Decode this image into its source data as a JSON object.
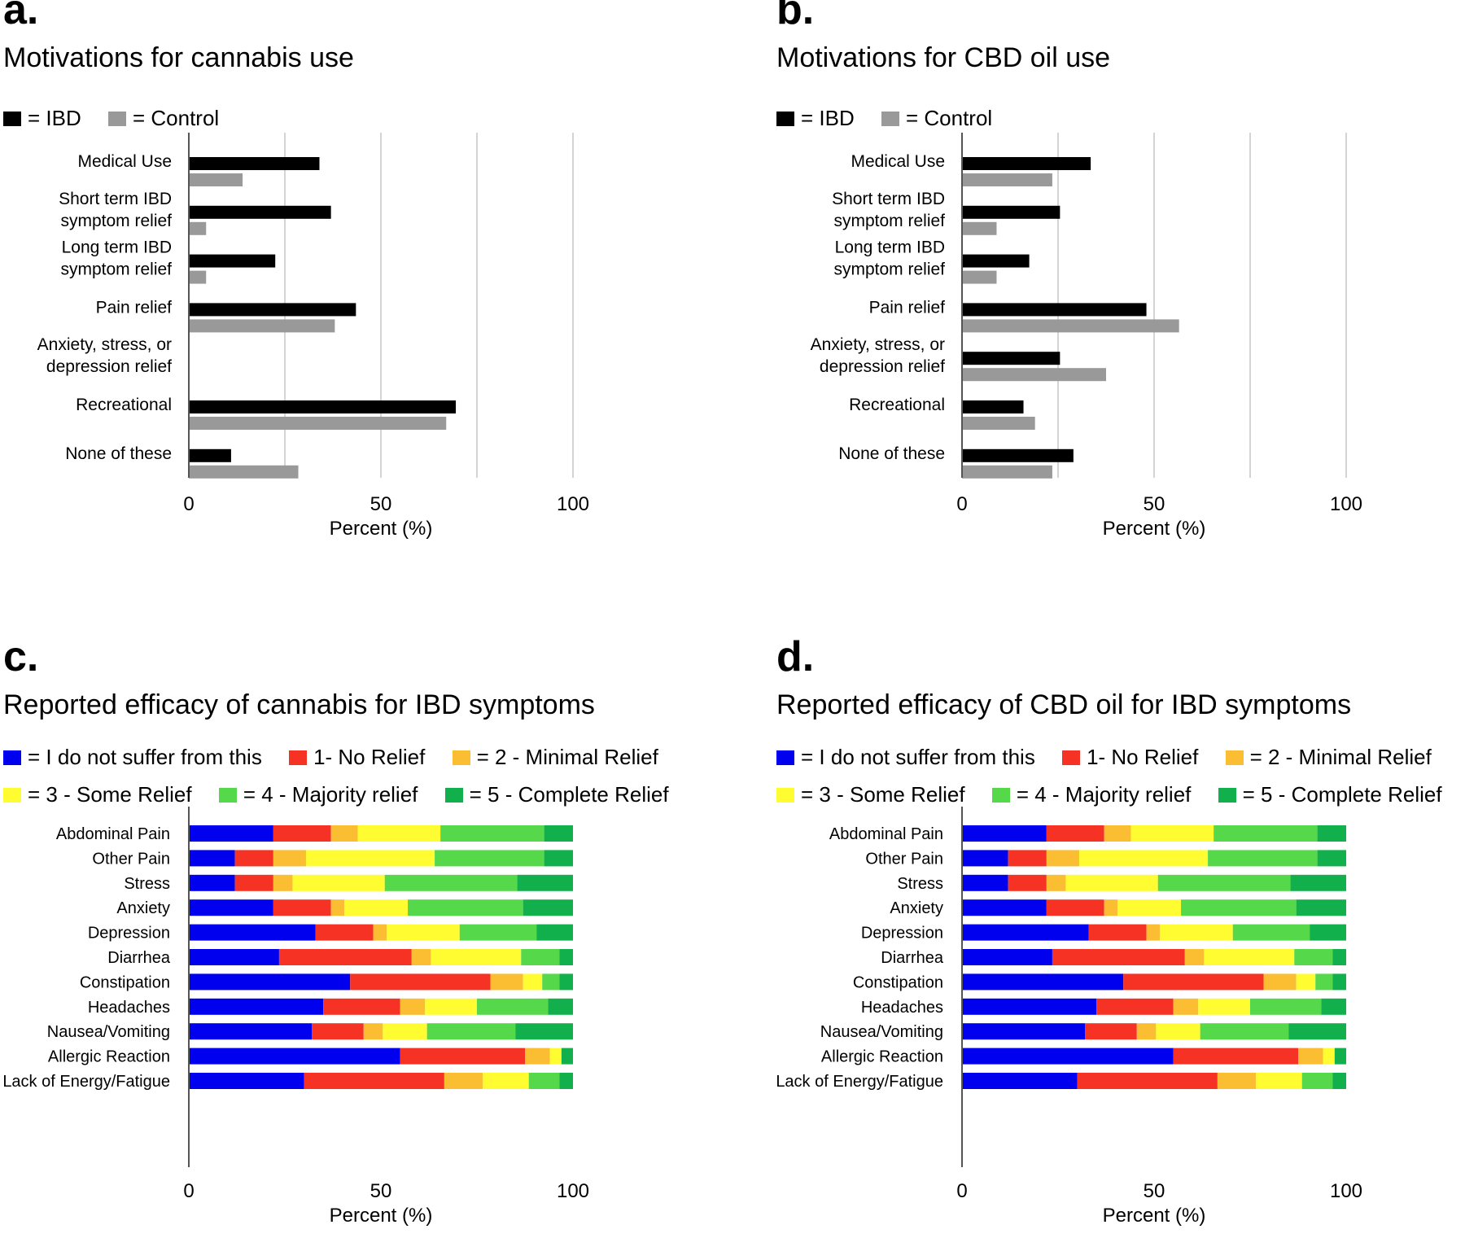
{
  "panels": {
    "a": {
      "label": "a.",
      "title": "Motivations for cannabis use"
    },
    "b": {
      "label": "b.",
      "title": "Motivations for CBD oil use"
    },
    "c": {
      "label": "c.",
      "title": "Reported efficacy of cannabis for IBD symptoms"
    },
    "d": {
      "label": "d.",
      "title": "Reported efficacy of CBD oil for IBD symptoms"
    }
  },
  "legends": {
    "motivation": [
      {
        "label": "= IBD",
        "color": "#000000"
      },
      {
        "label": "= Control",
        "color": "#999999"
      }
    ],
    "efficacy_row1": [
      {
        "label": "= I do not suffer from this",
        "color": "#0000ee"
      },
      {
        "label": "1- No Relief",
        "color": "#f53223"
      },
      {
        "label": "= 2 - Minimal Relief",
        "color": "#fbbd32"
      }
    ],
    "efficacy_row2": [
      {
        "label": "= 3 - Some Relief",
        "color": "#fffd32"
      },
      {
        "label": "= 4 - Majority relief",
        "color": "#56d84b"
      },
      {
        "label": "= 5 - Complete Relief",
        "color": "#11b04c"
      }
    ]
  },
  "chart_data": [
    {
      "id": "a",
      "type": "bar",
      "orientation": "horizontal",
      "title": "Motivations for cannabis use",
      "xlabel": "Percent (%)",
      "xlim": [
        0,
        100
      ],
      "xticks": [
        0,
        50,
        100
      ],
      "grid": true,
      "categories": [
        "Medical Use",
        "Short term IBD\nsymptom relief",
        "Long term IBD\nsymptom relief",
        "Pain relief",
        "Anxiety, stress, or\ndepression relief",
        "Recreational",
        "None of these"
      ],
      "series": [
        {
          "name": "IBD",
          "color": "#000000",
          "values": [
            34,
            37,
            22.5,
            43.5,
            0,
            69.5,
            11
          ]
        },
        {
          "name": "Control",
          "color": "#999999",
          "values": [
            14,
            4.5,
            4.5,
            38,
            0,
            67,
            28.5
          ]
        }
      ]
    },
    {
      "id": "b",
      "type": "bar",
      "orientation": "horizontal",
      "title": "Motivations for CBD oil use",
      "xlabel": "Percent (%)",
      "xlim": [
        0,
        100
      ],
      "xticks": [
        0,
        50,
        100
      ],
      "grid": true,
      "categories": [
        "Medical Use",
        "Short term IBD\nsymptom relief",
        "Long term IBD\nsymptom relief",
        "Pain relief",
        "Anxiety, stress, or\ndepression relief",
        "Recreational",
        "None of these"
      ],
      "series": [
        {
          "name": "IBD",
          "color": "#000000",
          "values": [
            33.5,
            25.5,
            17.5,
            48,
            25.5,
            16,
            29
          ]
        },
        {
          "name": "Control",
          "color": "#999999",
          "values": [
            23.5,
            9,
            9,
            56.5,
            37.5,
            19,
            23.5
          ]
        }
      ]
    },
    {
      "id": "c",
      "type": "bar",
      "orientation": "horizontal",
      "stacked": true,
      "title": "Reported efficacy of cannabis for IBD symptoms",
      "xlabel": "Percent (%)",
      "xlim": [
        0,
        100
      ],
      "xticks": [
        0,
        50,
        100
      ],
      "grid": false,
      "categories": [
        "Abdominal Pain",
        "Other Pain",
        "Stress",
        "Anxiety",
        "Depression",
        "Diarrhea",
        "Constipation",
        "Headaches",
        "Nausea/Vomiting",
        "Allergic Reaction",
        "Lack of Energy/Fatigue"
      ],
      "series": [
        {
          "name": "I do not suffer from this",
          "color": "#0000ee",
          "values": [
            22,
            12,
            12,
            22,
            33,
            23.5,
            42,
            35,
            32,
            55,
            30
          ]
        },
        {
          "name": "1- No Relief",
          "color": "#f53223",
          "values": [
            15,
            10,
            10,
            15,
            15,
            34.5,
            36.5,
            20,
            13.5,
            32.5,
            36.5
          ]
        },
        {
          "name": "2 - Minimal Relief",
          "color": "#fbbd32",
          "values": [
            7,
            8.5,
            5,
            3.5,
            3.5,
            5,
            8.5,
            6.5,
            5,
            6.5,
            10
          ]
        },
        {
          "name": "3 - Some Relief",
          "color": "#fffd32",
          "values": [
            21.5,
            33.5,
            24,
            16.5,
            19,
            23.5,
            5,
            13.5,
            11.5,
            3,
            12
          ]
        },
        {
          "name": "4 - Majority relief",
          "color": "#56d84b",
          "values": [
            27,
            28.5,
            34.5,
            30,
            20,
            10,
            4.5,
            18.5,
            23,
            0,
            8
          ]
        },
        {
          "name": "5 - Complete Relief",
          "color": "#11b04c",
          "values": [
            7.5,
            7.5,
            14.5,
            13,
            9.5,
            3.5,
            3.5,
            6.5,
            15,
            3,
            3.5
          ]
        }
      ]
    },
    {
      "id": "d",
      "type": "bar",
      "orientation": "horizontal",
      "stacked": true,
      "title": "Reported efficacy of CBD oil for IBD symptoms",
      "xlabel": "Percent (%)",
      "xlim": [
        0,
        100
      ],
      "xticks": [
        0,
        50,
        100
      ],
      "grid": false,
      "categories": [
        "Abdominal Pain",
        "Other Pain",
        "Stress",
        "Anxiety",
        "Depression",
        "Diarrhea",
        "Constipation",
        "Headaches",
        "Nausea/Vomiting",
        "Allergic Reaction",
        "Lack of Energy/Fatigue"
      ],
      "series": [
        {
          "name": "I do not suffer from this",
          "color": "#0000ee",
          "values": [
            22,
            12,
            12,
            22,
            33,
            23.5,
            42,
            35,
            32,
            55,
            30
          ]
        },
        {
          "name": "1- No Relief",
          "color": "#f53223",
          "values": [
            15,
            10,
            10,
            15,
            15,
            34.5,
            36.5,
            20,
            13.5,
            32.5,
            36.5
          ]
        },
        {
          "name": "2 - Minimal Relief",
          "color": "#fbbd32",
          "values": [
            7,
            8.5,
            5,
            3.5,
            3.5,
            5,
            8.5,
            6.5,
            5,
            6.5,
            10
          ]
        },
        {
          "name": "3 - Some Relief",
          "color": "#fffd32",
          "values": [
            21.5,
            33.5,
            24,
            16.5,
            19,
            23.5,
            5,
            13.5,
            11.5,
            3,
            12
          ]
        },
        {
          "name": "4 - Majority relief",
          "color": "#56d84b",
          "values": [
            27,
            28.5,
            34.5,
            30,
            20,
            10,
            4.5,
            18.5,
            23,
            0,
            8
          ]
        },
        {
          "name": "5 - Complete Relief",
          "color": "#11b04c",
          "values": [
            7.5,
            7.5,
            14.5,
            13,
            9.5,
            3.5,
            3.5,
            6.5,
            15,
            3,
            3.5
          ]
        }
      ]
    }
  ]
}
